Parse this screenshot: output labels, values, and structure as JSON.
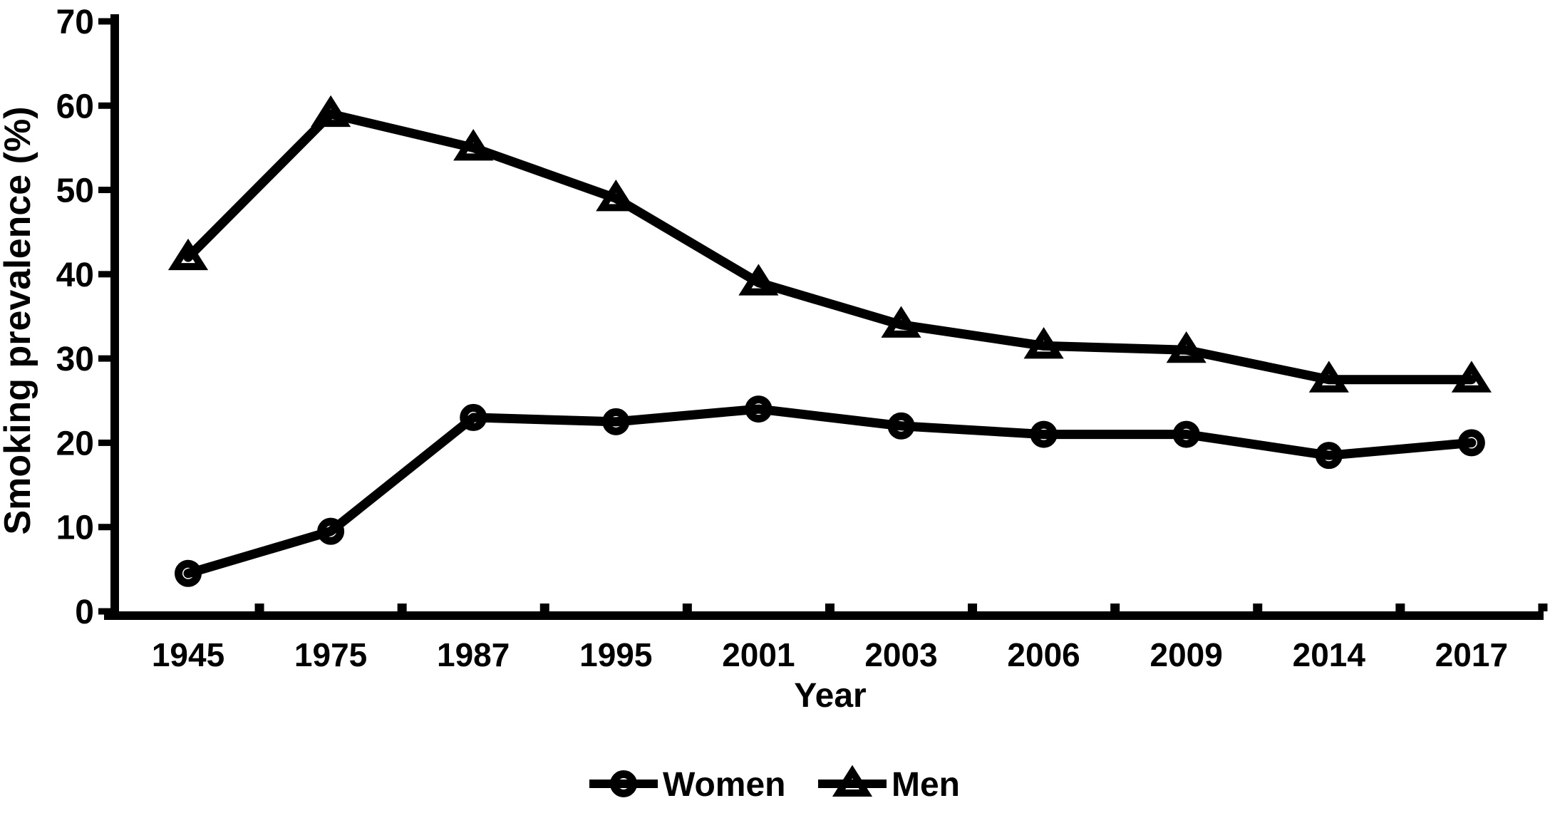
{
  "figure": {
    "background": "#ffffff",
    "ink_color": "#000000"
  },
  "chart_data": {
    "type": "line",
    "title": "",
    "xlabel": "Year",
    "ylabel": "Smoking prevalence (%)",
    "categories": [
      "1945",
      "1975",
      "1987",
      "1995",
      "2001",
      "2003",
      "2006",
      "2009",
      "2014",
      "2017"
    ],
    "series": [
      {
        "name": "Women",
        "marker": "circle",
        "values": [
          4.5,
          9.5,
          23,
          22.5,
          24,
          22,
          21,
          21,
          18.5,
          20
        ]
      },
      {
        "name": "Men",
        "marker": "triangle",
        "values": [
          42,
          59,
          55,
          49,
          39,
          34,
          31.5,
          31,
          27.5,
          27.5
        ]
      }
    ],
    "ylim": [
      0,
      70
    ],
    "yticks": [
      0,
      10,
      20,
      30,
      40,
      50,
      60,
      70
    ],
    "grid": false,
    "legend_position": "bottom-center",
    "line_color": "#000000",
    "marker_fill": "none"
  },
  "legend": {
    "items": [
      {
        "label": "Women",
        "marker": "circle"
      },
      {
        "label": "Men",
        "marker": "triangle"
      }
    ]
  }
}
